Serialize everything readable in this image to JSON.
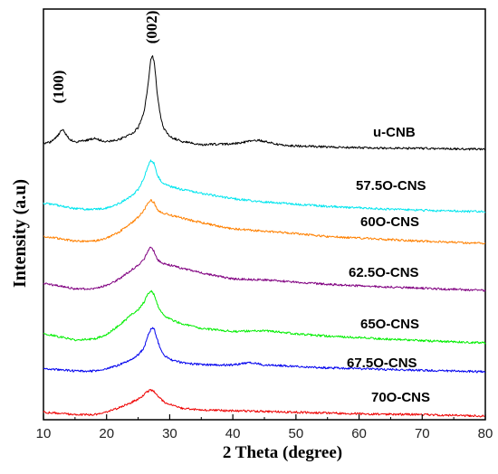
{
  "chart_data": {
    "type": "line",
    "xlabel": "2 Theta (degree)",
    "ylabel": "Intensity (a.u)",
    "xlim": [
      10,
      80
    ],
    "xticks": [
      10,
      20,
      30,
      40,
      50,
      60,
      70,
      80
    ],
    "grid": false,
    "legend": "none",
    "annotations": [
      {
        "text": "(100)",
        "x": 13
      },
      {
        "text": "(002)",
        "x": 27
      }
    ],
    "series": [
      {
        "name": "u-CNB",
        "color": "#000000",
        "x": [
          10,
          11,
          12,
          13,
          14,
          15,
          17,
          18,
          20,
          22,
          24,
          25,
          26,
          26.5,
          27,
          27.3,
          27.6,
          28,
          28.5,
          29,
          30,
          32,
          35,
          40,
          44,
          48,
          55,
          60,
          70,
          80
        ],
        "y": [
          0.8,
          0.9,
          1.5,
          2.6,
          1.4,
          0.9,
          1.2,
          1.4,
          1.0,
          1.3,
          2.0,
          2.8,
          5.0,
          8.0,
          11.6,
          12.2,
          11.0,
          7.5,
          4.5,
          2.8,
          1.6,
          1.0,
          0.6,
          0.7,
          1.2,
          0.5,
          0.3,
          0.2,
          0.1,
          0.0
        ]
      },
      {
        "name": "57.5O-CNS",
        "color": "#00e5ee",
        "x": [
          10,
          12,
          15,
          18,
          20,
          22,
          24,
          25,
          26,
          26.5,
          27,
          27.5,
          28,
          28.5,
          29,
          30,
          32,
          35,
          40,
          45,
          50,
          55,
          60,
          70,
          80
        ],
        "y": [
          1.2,
          1.0,
          0.5,
          0.4,
          0.6,
          1.2,
          2.2,
          3.0,
          4.6,
          6.0,
          6.8,
          6.4,
          5.0,
          4.2,
          3.8,
          3.4,
          3.0,
          2.5,
          1.8,
          1.4,
          1.1,
          0.8,
          0.6,
          0.3,
          0.1
        ]
      },
      {
        "name": "60O-CNS",
        "color": "#ff8000",
        "x": [
          10,
          12,
          15,
          18,
          20,
          22,
          24,
          25,
          26,
          26.5,
          27,
          27.5,
          28,
          28.5,
          29,
          30,
          32,
          35,
          40,
          45,
          50,
          55,
          60,
          70,
          80
        ],
        "y": [
          1.0,
          0.8,
          0.4,
          0.4,
          0.8,
          1.6,
          2.8,
          3.5,
          4.5,
          5.3,
          5.8,
          5.4,
          4.6,
          4.2,
          4.0,
          3.8,
          3.4,
          2.8,
          2.0,
          1.7,
          1.4,
          1.0,
          0.8,
          0.4,
          0.1
        ]
      },
      {
        "name": "62.5O-CNS",
        "color": "#800080",
        "x": [
          10,
          12,
          15,
          18,
          20,
          22,
          24,
          25,
          26,
          26.5,
          27,
          27.5,
          28,
          28.5,
          29,
          30,
          32,
          35,
          40,
          45,
          50,
          55,
          60,
          70,
          80
        ],
        "y": [
          1.0,
          0.8,
          0.3,
          0.3,
          0.8,
          1.6,
          2.8,
          3.4,
          4.2,
          5.2,
          5.8,
          5.2,
          4.2,
          3.8,
          3.6,
          3.4,
          3.0,
          2.4,
          1.6,
          1.5,
          1.2,
          0.9,
          0.7,
          0.4,
          0.1
        ]
      },
      {
        "name": "65O-CNS",
        "color": "#00ee00",
        "x": [
          10,
          12,
          15,
          18,
          20,
          22,
          24,
          25,
          26,
          26.5,
          27,
          27.5,
          28,
          28.5,
          29,
          30,
          32,
          35,
          40,
          45,
          50,
          55,
          60,
          70,
          80
        ],
        "y": [
          1.3,
          1.0,
          0.5,
          0.6,
          1.2,
          2.4,
          3.8,
          4.4,
          5.5,
          6.4,
          6.9,
          6.4,
          5.2,
          4.3,
          3.7,
          3.2,
          2.6,
          2.0,
          1.6,
          1.7,
          1.3,
          1.0,
          0.8,
          0.4,
          0.1
        ]
      },
      {
        "name": "67.5O-CNS",
        "color": "#0000ee",
        "x": [
          10,
          12,
          15,
          18,
          20,
          22,
          24,
          25,
          26,
          26.5,
          27,
          27.3,
          27.6,
          28,
          28.5,
          29,
          30,
          32,
          35,
          40,
          43,
          45,
          50,
          55,
          60,
          70,
          80
        ],
        "y": [
          0.4,
          0.3,
          0.1,
          0.1,
          0.4,
          0.9,
          1.6,
          2.2,
          3.2,
          4.6,
          5.5,
          5.8,
          5.4,
          4.3,
          3.0,
          2.2,
          1.6,
          1.2,
          0.9,
          0.9,
          1.2,
          0.9,
          0.7,
          0.5,
          0.4,
          0.2,
          0.0
        ]
      },
      {
        "name": "70O-CNS",
        "color": "#ee0000",
        "x": [
          10,
          12,
          15,
          18,
          20,
          22,
          24,
          25,
          26,
          26.5,
          27,
          27.5,
          28,
          28.5,
          29,
          30,
          32,
          35,
          40,
          45,
          50,
          55,
          60,
          70,
          80
        ],
        "y": [
          0.5,
          0.4,
          0.2,
          0.2,
          0.5,
          1.1,
          1.8,
          2.2,
          2.8,
          3.2,
          3.4,
          3.2,
          2.8,
          2.3,
          1.9,
          1.5,
          1.0,
          0.8,
          0.7,
          0.6,
          0.5,
          0.4,
          0.3,
          0.2,
          0.0
        ]
      }
    ]
  }
}
